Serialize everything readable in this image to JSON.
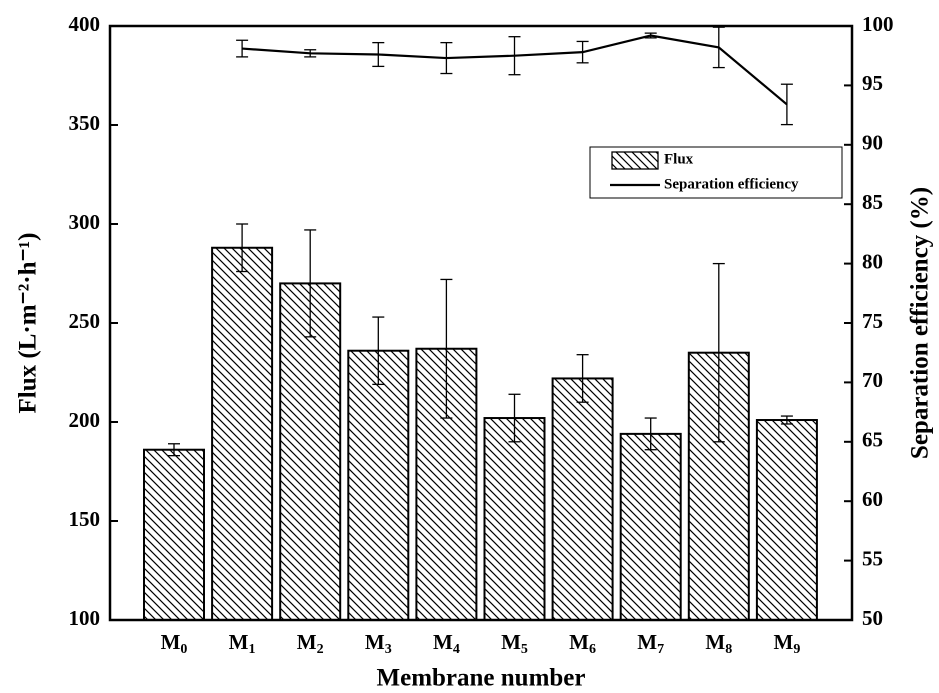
{
  "chart_data": {
    "type": "bar",
    "categories": [
      "M0",
      "M1",
      "M2",
      "M3",
      "M4",
      "M5",
      "M6",
      "M7",
      "M8",
      "M9"
    ],
    "xlabel": "Membrane number",
    "ylabel": "Flux (L·m⁻²·h⁻¹)",
    "y2label": "Separation efficiency (%)",
    "ylim": [
      100,
      400
    ],
    "yticks": [
      100,
      150,
      200,
      250,
      300,
      350,
      400
    ],
    "y2lim": [
      50,
      100
    ],
    "y2ticks": [
      50,
      55,
      60,
      65,
      70,
      75,
      80,
      85,
      90,
      95,
      100
    ],
    "legend": "upper right",
    "series": [
      {
        "name": "Flux",
        "type": "bar",
        "color": "#000000",
        "hatch": "\\\\",
        "values": [
          186,
          288,
          270,
          236,
          237,
          202,
          222,
          194,
          235,
          201
        ],
        "errors": [
          3,
          12,
          27,
          17,
          35,
          12,
          12,
          8,
          45,
          2
        ]
      },
      {
        "name": "Separation efficiency",
        "type": "line",
        "axis": "y2",
        "color": "#000000",
        "values": [
          null,
          98.1,
          97.7,
          97.6,
          97.3,
          97.5,
          97.8,
          99.2,
          98.2,
          93.4
        ],
        "errors": [
          null,
          0.7,
          0.3,
          1.0,
          1.3,
          1.6,
          0.9,
          0.2,
          1.7,
          1.7
        ]
      }
    ]
  }
}
